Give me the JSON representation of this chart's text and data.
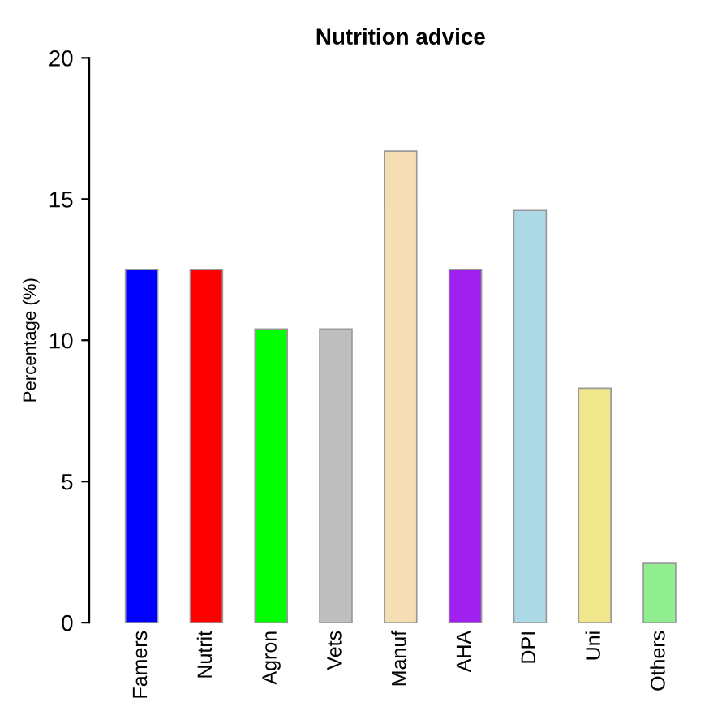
{
  "chart_data": {
    "type": "bar",
    "title": "Nutrition advice",
    "ylabel": "Percentage (%)",
    "categories": [
      "Famers",
      "Nutrit",
      "Agron",
      "Vets",
      "Manuf",
      "AHA",
      "DPI",
      "Uni",
      "Others"
    ],
    "values": [
      12.5,
      12.5,
      10.4,
      10.4,
      16.7,
      12.5,
      14.6,
      8.3,
      2.1
    ],
    "colors": [
      "#0000ff",
      "#ff0000",
      "#00ff00",
      "#bebebe",
      "#f5deb3",
      "#a020f0",
      "#add8e6",
      "#f0e68c",
      "#90ee90"
    ],
    "ylim": [
      0,
      20
    ],
    "yticks": [
      0,
      5,
      10,
      15,
      20
    ],
    "grid": false
  }
}
